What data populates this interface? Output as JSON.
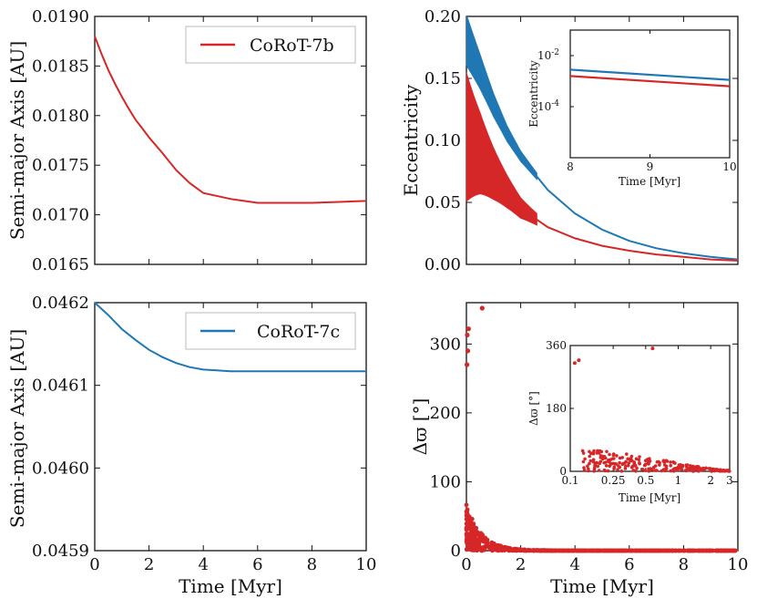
{
  "colors": {
    "red": "#d62728",
    "blue": "#1f77b4"
  },
  "chart_data": [
    {
      "id": "a-b",
      "type": "line",
      "xlabel": "",
      "ylabel": "Semi-major Axis [AU]",
      "xlim": [
        0,
        10
      ],
      "ylim": [
        0.0165,
        0.019
      ],
      "xticks": [
        0,
        2,
        4,
        6,
        8,
        10
      ],
      "yticks": [
        "0.0165",
        "0.0170",
        "0.0175",
        "0.0180",
        "0.0185",
        "0.0190"
      ],
      "show_xticklabels": false,
      "legend": [
        "CoRoT-7b"
      ],
      "series": [
        {
          "name": "CoRoT-7b",
          "color": "#d62728",
          "x": [
            0,
            0.25,
            0.5,
            0.75,
            1,
            1.25,
            1.5,
            1.75,
            2,
            2.5,
            3,
            3.5,
            4,
            5,
            6,
            7,
            8,
            9,
            10
          ],
          "y": [
            0.0188,
            0.01862,
            0.01846,
            0.01832,
            0.01819,
            0.01807,
            0.01796,
            0.01787,
            0.01778,
            0.01762,
            0.01745,
            0.01732,
            0.01722,
            0.01716,
            0.01712,
            0.01712,
            0.01712,
            0.01713,
            0.01714
          ]
        }
      ]
    },
    {
      "id": "a-c",
      "type": "line",
      "xlabel": "Time [Myr]",
      "ylabel": "Semi-major Axis [AU]",
      "xlim": [
        0,
        10
      ],
      "ylim": [
        0.0459,
        0.0462
      ],
      "xticks": [
        "0",
        "2",
        "4",
        "6",
        "8",
        "10"
      ],
      "yticks": [
        "0.0459",
        "0.0460",
        "0.0461",
        "0.0462"
      ],
      "legend": [
        "CoRoT-7c"
      ],
      "series": [
        {
          "name": "CoRoT-7c",
          "color": "#1f77b4",
          "x": [
            0,
            0.5,
            1,
            1.5,
            2,
            2.5,
            3,
            3.5,
            4,
            4.5,
            5,
            5.5,
            6,
            7,
            8,
            9,
            10
          ],
          "y": [
            0.0462,
            0.046185,
            0.046168,
            0.046155,
            0.046143,
            0.046134,
            0.046127,
            0.046122,
            0.046119,
            0.046118,
            0.046117,
            0.046117,
            0.046117,
            0.046117,
            0.046117,
            0.046117,
            0.046117
          ]
        }
      ]
    },
    {
      "id": "ecc",
      "type": "line",
      "xlabel": "",
      "ylabel": "Eccentricity",
      "xlim": [
        0,
        10
      ],
      "ylim": [
        0,
        0.2
      ],
      "xticks": [
        0,
        2,
        4,
        6,
        8,
        10
      ],
      "yticks": [
        "0.00",
        "0.05",
        "0.10",
        "0.15",
        "0.20"
      ],
      "show_xticklabels": false,
      "series": [
        {
          "name": "CoRoT-7c",
          "color": "#1f77b4",
          "x": [
            0,
            0.5,
            1,
            1.5,
            2,
            3,
            4,
            5,
            6,
            7,
            8,
            9,
            10
          ],
          "y": [
            0.18,
            0.155,
            0.128,
            0.105,
            0.087,
            0.06,
            0.041,
            0.028,
            0.019,
            0.013,
            0.009,
            0.006,
            0.004
          ]
        },
        {
          "name": "CoRoT-7b",
          "color": "#d62728",
          "x": [
            0,
            0.5,
            1,
            1.5,
            2,
            3,
            4,
            5,
            6,
            7,
            8,
            9,
            10
          ],
          "y": [
            0.1,
            0.088,
            0.072,
            0.058,
            0.045,
            0.03,
            0.021,
            0.015,
            0.011,
            0.008,
            0.006,
            0.004,
            0.003
          ]
        }
      ]
    },
    {
      "id": "ecc-inset",
      "type": "line",
      "xlabel": "Time [Myr]",
      "ylabel": "Eccentricity",
      "xlim": [
        8,
        10
      ],
      "ylim_log10": [
        -6,
        -1
      ],
      "xticks": [
        "8",
        "9",
        "10"
      ],
      "yticks": [
        {
          "base": "10",
          "exp": "-2",
          "log": -2
        },
        {
          "base": "10",
          "exp": "-4",
          "log": -4
        }
      ],
      "series": [
        {
          "name": "CoRoT-7c",
          "color": "#1f77b4",
          "x": [
            8,
            10
          ],
          "log_y": [
            -2.55,
            -2.95
          ]
        },
        {
          "name": "CoRoT-7b",
          "color": "#d62728",
          "x": [
            8,
            10
          ],
          "log_y": [
            -2.8,
            -3.2
          ]
        }
      ]
    },
    {
      "id": "dpomega",
      "type": "scatter",
      "xlabel": "Time [Myr]",
      "ylabel": "Δϖ [°]",
      "xlim": [
        0,
        10
      ],
      "ylim": [
        0,
        360
      ],
      "xticks": [
        "0",
        "2",
        "4",
        "6",
        "8",
        "10"
      ],
      "yticks": [
        "0",
        "100",
        "200",
        "300"
      ],
      "series": [
        {
          "name": "CoRoT-7b",
          "color": "#d62728",
          "points": [
            [
              0.03,
              313
            ],
            [
              0.08,
              322
            ],
            [
              0.05,
              290
            ],
            [
              0.02,
              270
            ],
            [
              0.58,
              352
            ]
          ]
        }
      ]
    },
    {
      "id": "dpomega-inset",
      "type": "scatter",
      "xlabel": "Time [Myr]",
      "ylabel": "Δϖ [°]",
      "xscale": "log",
      "xlim": [
        0.1,
        3
      ],
      "ylim": [
        0,
        360
      ],
      "xticks": [
        "0.1",
        "0.25",
        "0.5",
        "1",
        "2",
        "3"
      ],
      "yticks": [
        "0",
        "180",
        "360"
      ],
      "series": [
        {
          "name": "CoRoT-7b",
          "color": "#d62728",
          "points": [
            [
              0.11,
              310
            ],
            [
              0.12,
              318
            ],
            [
              0.58,
              352
            ]
          ]
        }
      ]
    }
  ],
  "legends": {
    "b_label": "CoRoT-7b",
    "c_label": "CoRoT-7c"
  }
}
